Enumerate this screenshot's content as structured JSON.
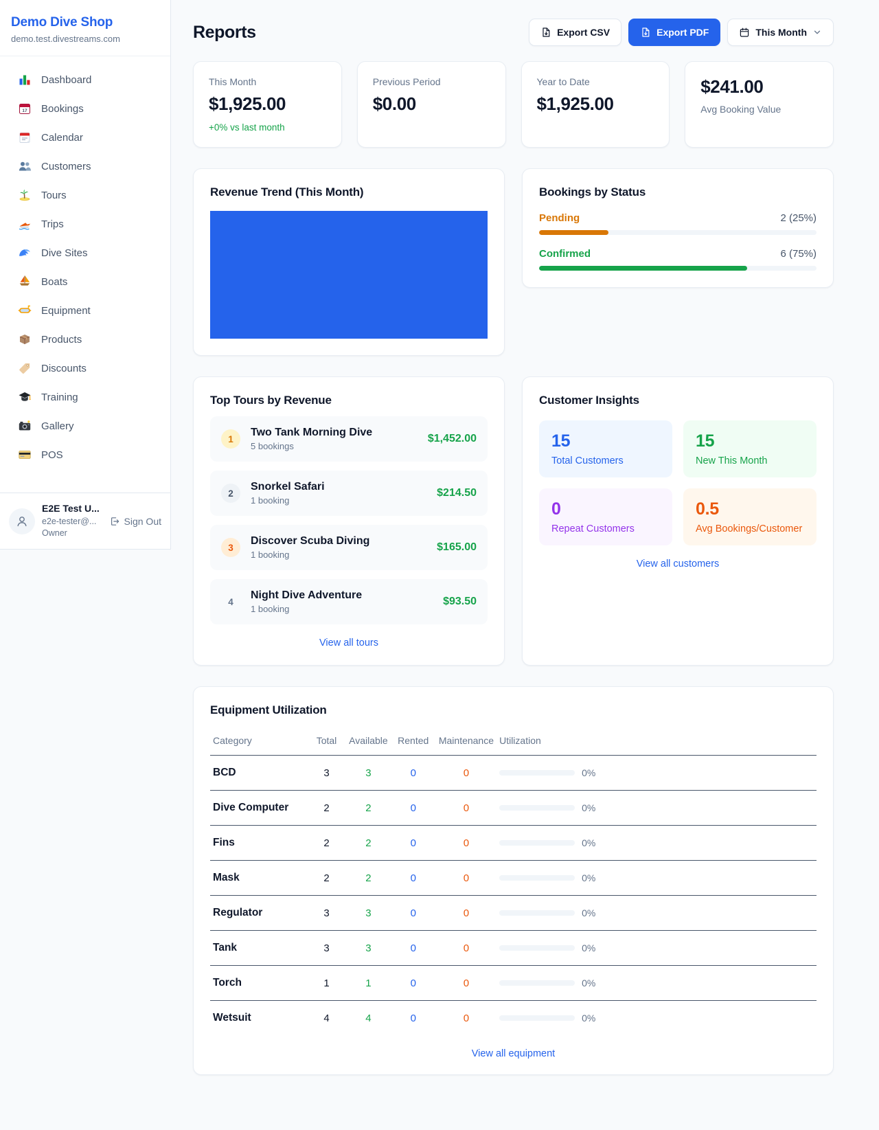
{
  "colors": {
    "accent_blue": "#2563eb",
    "success_green": "#16a34a",
    "pending_orange": "#d97706",
    "maintenance_orange": "#ea580c",
    "repeat_purple": "#9333ea",
    "background": "#f8fafc"
  },
  "sidebar": {
    "shop_name": "Demo Dive Shop",
    "shop_domain": "demo.test.divestreams.com",
    "items": [
      {
        "label": "Dashboard",
        "icon": "dashboard-icon"
      },
      {
        "label": "Bookings",
        "icon": "bookings-icon"
      },
      {
        "label": "Calendar",
        "icon": "calendar-icon"
      },
      {
        "label": "Customers",
        "icon": "customers-icon"
      },
      {
        "label": "Tours",
        "icon": "tours-icon"
      },
      {
        "label": "Trips",
        "icon": "trips-icon"
      },
      {
        "label": "Dive Sites",
        "icon": "dive-sites-icon"
      },
      {
        "label": "Boats",
        "icon": "boats-icon"
      },
      {
        "label": "Equipment",
        "icon": "equipment-icon"
      },
      {
        "label": "Products",
        "icon": "products-icon"
      },
      {
        "label": "Discounts",
        "icon": "discounts-icon"
      },
      {
        "label": "Training",
        "icon": "training-icon"
      },
      {
        "label": "Gallery",
        "icon": "gallery-icon"
      },
      {
        "label": "POS",
        "icon": "pos-icon"
      }
    ],
    "user": {
      "name": "E2E Test U...",
      "email": "e2e-tester@...",
      "role": "Owner",
      "sign_out_label": "Sign Out",
      "avatar_icon": "user-icon",
      "sign_out_icon": "sign-out-icon"
    }
  },
  "header": {
    "title": "Reports",
    "export_csv_label": "Export CSV",
    "export_pdf_label": "Export PDF",
    "period_label": "This Month",
    "export_icon": "file-export-icon",
    "period_icon": "calendar-outline-icon",
    "period_chevron_icon": "chevron-down-icon"
  },
  "stats": [
    {
      "label": "This Month",
      "value": "$1,925.00",
      "delta": "+0% vs last month"
    },
    {
      "label": "Previous Period",
      "value": "$0.00"
    },
    {
      "label": "Year to Date",
      "value": "$1,925.00"
    },
    {
      "label": "Avg Booking Value",
      "value": "$241.00",
      "value_first": true
    }
  ],
  "revenue_trend": {
    "title": "Revenue Trend (This Month)",
    "bar_color": "#2563eb",
    "bar_fill_percent": 100
  },
  "bookings_by_status": {
    "title": "Bookings by Status",
    "rows": [
      {
        "label": "Pending",
        "value": "2 (25%)",
        "percent": 25,
        "color": "#d97706"
      },
      {
        "label": "Confirmed",
        "value": "6 (75%)",
        "percent": 75,
        "color": "#16a34a"
      }
    ]
  },
  "top_tours": {
    "title": "Top Tours by Revenue",
    "view_all_label": "View all tours",
    "items": [
      {
        "rank": "1",
        "name": "Two Tank Morning Dive",
        "bookings": "5 bookings",
        "revenue": "$1,452.00",
        "badge_bg": "#fef3c7",
        "badge_color": "#d97706"
      },
      {
        "rank": "2",
        "name": "Snorkel Safari",
        "bookings": "1 booking",
        "revenue": "$214.50",
        "badge_bg": "#eef2f6",
        "badge_color": "#475569"
      },
      {
        "rank": "3",
        "name": "Discover Scuba Diving",
        "bookings": "1 booking",
        "revenue": "$165.00",
        "badge_bg": "#ffedd5",
        "badge_color": "#ea580c"
      },
      {
        "rank": "4",
        "name": "Night Dive Adventure",
        "bookings": "1 booking",
        "revenue": "$93.50",
        "badge_bg": "transparent",
        "badge_color": "#64748b"
      }
    ]
  },
  "customer_insights": {
    "title": "Customer Insights",
    "view_all_label": "View all customers",
    "tiles": [
      {
        "value": "15",
        "label": "Total Customers",
        "color": "#2563eb",
        "bg": "#eff6ff"
      },
      {
        "value": "15",
        "label": "New This Month",
        "color": "#16a34a",
        "bg": "#f0fdf4"
      },
      {
        "value": "0",
        "label": "Repeat Customers",
        "color": "#9333ea",
        "bg": "#faf5ff"
      },
      {
        "value": "0.5",
        "label": "Avg Bookings/Customer",
        "color": "#ea580c",
        "bg": "#fff7ed"
      }
    ]
  },
  "equipment": {
    "title": "Equipment Utilization",
    "view_all_label": "View all equipment",
    "columns": [
      "Category",
      "Total",
      "Available",
      "Rented",
      "Maintenance",
      "Utilization"
    ],
    "rows": [
      {
        "category": "BCD",
        "total": "3",
        "available": "3",
        "rented": "0",
        "maintenance": "0",
        "utilization": "0%",
        "utilization_percent": 0
      },
      {
        "category": "Dive Computer",
        "total": "2",
        "available": "2",
        "rented": "0",
        "maintenance": "0",
        "utilization": "0%",
        "utilization_percent": 0
      },
      {
        "category": "Fins",
        "total": "2",
        "available": "2",
        "rented": "0",
        "maintenance": "0",
        "utilization": "0%",
        "utilization_percent": 0
      },
      {
        "category": "Mask",
        "total": "2",
        "available": "2",
        "rented": "0",
        "maintenance": "0",
        "utilization": "0%",
        "utilization_percent": 0
      },
      {
        "category": "Regulator",
        "total": "3",
        "available": "3",
        "rented": "0",
        "maintenance": "0",
        "utilization": "0%",
        "utilization_percent": 0
      },
      {
        "category": "Tank",
        "total": "3",
        "available": "3",
        "rented": "0",
        "maintenance": "0",
        "utilization": "0%",
        "utilization_percent": 0
      },
      {
        "category": "Torch",
        "total": "1",
        "available": "1",
        "rented": "0",
        "maintenance": "0",
        "utilization": "0%",
        "utilization_percent": 0
      },
      {
        "category": "Wetsuit",
        "total": "4",
        "available": "4",
        "rented": "0",
        "maintenance": "0",
        "utilization": "0%",
        "utilization_percent": 0
      }
    ]
  }
}
